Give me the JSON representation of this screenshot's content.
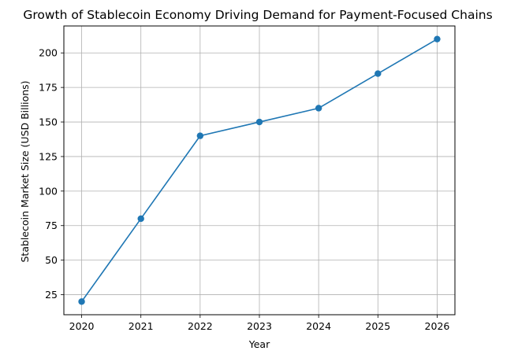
{
  "chart_data": {
    "type": "line",
    "title": "Growth of Stablecoin Economy Driving Demand for Payment-Focused Chains",
    "xlabel": "Year",
    "ylabel": "Stablecoin Market Size (USD Billions)",
    "x": [
      2020,
      2021,
      2022,
      2023,
      2024,
      2025,
      2026
    ],
    "series": [
      {
        "values": [
          20,
          80,
          140,
          150,
          160,
          185,
          210
        ]
      }
    ],
    "xticks": [
      "2020",
      "2021",
      "2022",
      "2023",
      "2024",
      "2025",
      "2026"
    ],
    "yticks": [
      25,
      50,
      75,
      100,
      125,
      150,
      175,
      200
    ],
    "xlim": [
      2019.7,
      2026.3
    ],
    "ylim": [
      10.5,
      219.5
    ],
    "grid": true,
    "line_color": "#1f77b4",
    "marker": "circle"
  }
}
